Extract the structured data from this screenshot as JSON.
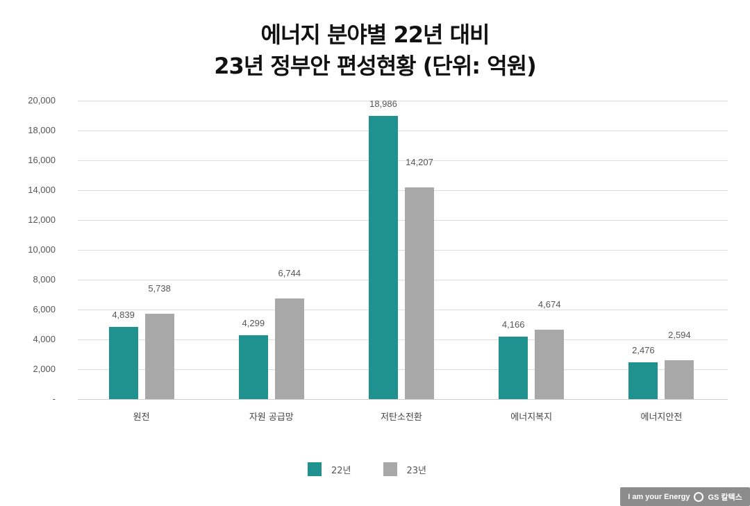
{
  "header": {
    "title_line1": "에너지 분야별 22년 대비",
    "title_line2": "23년 정부안 편성현황 (단위: 억원)"
  },
  "colors": {
    "s22": "#1f918f",
    "s23": "#a8a8a8"
  },
  "yaxis": {
    "ticks": [
      "20,000",
      "18,000",
      "16,000",
      "14,000",
      "12,000",
      "10,000",
      "8,000",
      "6,000",
      "4,000",
      "2,000",
      "-"
    ]
  },
  "legend": {
    "items": [
      {
        "label": "22년"
      },
      {
        "label": "23년"
      }
    ]
  },
  "branding": {
    "tagline": "I am your Energy",
    "company": "GS 칼텍스"
  },
  "labels": {
    "c0": {
      "name": "원전",
      "v0": "4,839",
      "v1": "5,738"
    },
    "c1": {
      "name": "자원 공급망",
      "v0": "4,299",
      "v1": "6,744"
    },
    "c2": {
      "name": "저탄소전환",
      "v0": "18,986",
      "v1": "14,207"
    },
    "c3": {
      "name": "에너지복지",
      "v0": "4,166",
      "v1": "4,674"
    },
    "c4": {
      "name": "에너지안전",
      "v0": "2,476",
      "v1": "2,594"
    }
  },
  "chart_data": {
    "type": "bar",
    "title": "에너지 분야별 22년 대비 23년 정부안 편성현황 (단위: 억원)",
    "categories": [
      "원전",
      "자원 공급망",
      "저탄소전환",
      "에너지복지",
      "에너지안전"
    ],
    "series": [
      {
        "name": "22년",
        "color": "#1f918f",
        "values": [
          4839,
          4299,
          18986,
          4166,
          2476
        ]
      },
      {
        "name": "23년",
        "color": "#a8a8a8",
        "values": [
          5738,
          6744,
          14207,
          4674,
          2594
        ]
      }
    ],
    "xlabel": "",
    "ylabel": "",
    "ylim": [
      0,
      20000
    ],
    "yticks": [
      0,
      2000,
      4000,
      6000,
      8000,
      10000,
      12000,
      14000,
      16000,
      18000,
      20000
    ],
    "grid": true,
    "legend_position": "bottom",
    "data_labels": true
  }
}
